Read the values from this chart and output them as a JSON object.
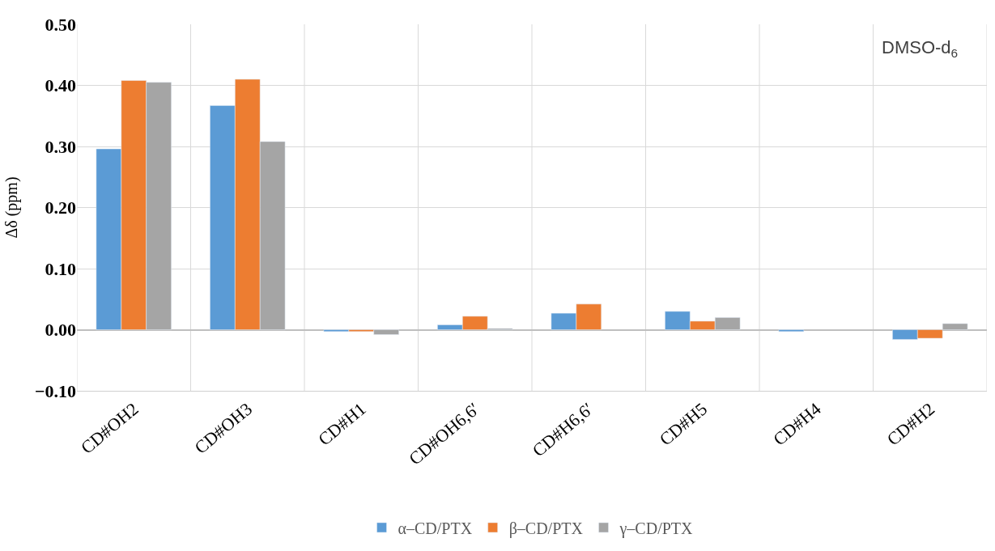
{
  "chart_data": {
    "type": "bar",
    "ylabel": "Δδ (ppm)",
    "categories": [
      "CD#OH2",
      "CD#OH3",
      "CD#H1",
      "CD#OH6,6′",
      "CD#H6,6′",
      "CD#H5",
      "CD#H4",
      "CD#H2"
    ],
    "series": [
      {
        "name": "α–CD/PTX",
        "color": "#5b9bd5",
        "values": [
          0.296,
          0.367,
          -0.003,
          0.008,
          0.027,
          0.03,
          -0.003,
          -0.016
        ]
      },
      {
        "name": "β–CD/PTX",
        "color": "#ed7d31",
        "values": [
          0.408,
          0.41,
          -0.003,
          0.022,
          0.042,
          0.014,
          null,
          -0.014
        ]
      },
      {
        "name": "γ–CD/PTX",
        "color": "#a5a5a5",
        "values": [
          0.405,
          0.308,
          -0.008,
          0.002,
          null,
          0.02,
          null,
          0.01
        ]
      }
    ],
    "ylim": [
      -0.1,
      0.5
    ],
    "yticks": [
      {
        "value": -0.1,
        "label": "−0.10"
      },
      {
        "value": 0,
        "label": "0.00"
      },
      {
        "value": 0.1,
        "label": "0.10"
      },
      {
        "value": 0.2,
        "label": "0.20"
      },
      {
        "value": 0.3,
        "label": "0.30"
      },
      {
        "value": 0.4,
        "label": "0.40"
      },
      {
        "value": 0.5,
        "label": "0.50"
      }
    ],
    "grid": true,
    "legend": "bottom",
    "annotations": [
      "DMSO-d$_{6}$"
    ]
  }
}
